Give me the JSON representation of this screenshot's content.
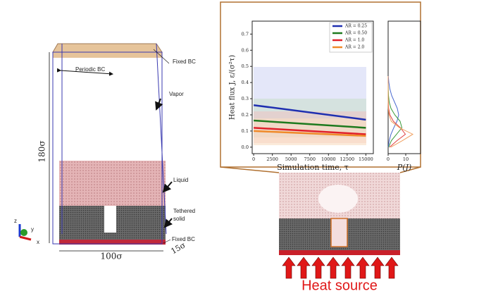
{
  "chart_data": [
    {
      "type": "line",
      "x_label": "Simulation time, τ",
      "y_label": "Heat flux J, ε/(σ²τ)",
      "x": [
        0,
        15000
      ],
      "series": [
        {
          "name": "AR = 0.25",
          "color": "#1f2fb0",
          "values": [
            0.26,
            0.17
          ]
        },
        {
          "name": "AR = 0.50",
          "color": "#1e7a1e",
          "values": [
            0.165,
            0.12
          ]
        },
        {
          "name": "AR = 1.0",
          "color": "#e0202a",
          "values": [
            0.12,
            0.08
          ]
        },
        {
          "name": "AR = 2.0",
          "color": "#f08a2a",
          "values": [
            0.1,
            0.07
          ]
        }
      ],
      "xlim": [
        -200,
        16000
      ],
      "ylim": [
        -0.04,
        0.78
      ],
      "xticks": [
        0,
        2500,
        5000,
        7500,
        10000,
        12500,
        15000
      ],
      "yticks": [
        {
          "value": 0,
          "label": "0.0"
        },
        0.1,
        0.2,
        0.3,
        0.4,
        0.5,
        0.6,
        0.7
      ],
      "legend": "upper right"
    },
    {
      "type": "density",
      "x_label": "P(J)",
      "y": [
        0,
        0.04,
        0.08,
        0.12,
        0.16,
        0.2,
        0.24,
        0.28,
        0.32,
        0.36,
        0.4,
        0.44
      ],
      "series": [
        {
          "name": "AR = 0.25",
          "color": "#4a6ad0",
          "values": [
            0.1,
            0.6,
            1.6,
            3.2,
            5,
            6,
            5.2,
            3.6,
            2,
            1,
            0.4,
            0.1
          ]
        },
        {
          "name": "AR = 0.50",
          "color": "#3a9a3a",
          "values": [
            0.3,
            1.8,
            4.8,
            7.8,
            6.8,
            3.8,
            1.6,
            0.6,
            0.2,
            0.1,
            0,
            0
          ]
        },
        {
          "name": "AR = 1.0",
          "color": "#e04040",
          "values": [
            0.8,
            5,
            9.8,
            7,
            3,
            1,
            0.3,
            0.1,
            0,
            0,
            0,
            0
          ]
        },
        {
          "name": "AR = 2.0",
          "color": "#f0a060",
          "values": [
            1.5,
            8,
            14,
            6.5,
            1.8,
            0.5,
            0.1,
            0,
            0,
            0,
            0,
            0
          ]
        }
      ],
      "xlim": [
        0,
        18.4
      ],
      "xticks": [
        0,
        10
      ]
    }
  ],
  "diagram": {
    "fixed_bc_top": "Fixed BC",
    "periodic_bc": "Periodic BC",
    "vapor": "Vapor",
    "liquid": "Liquid",
    "tethered": "Tethered",
    "solid": "solid",
    "fixed_bc_bottom": "Fixed BC",
    "height": "180σ",
    "width": "100σ",
    "depth": "15σ",
    "axis_z": "z",
    "axis_y": "y",
    "axis_x": "x",
    "heat_source": "Heat source"
  }
}
